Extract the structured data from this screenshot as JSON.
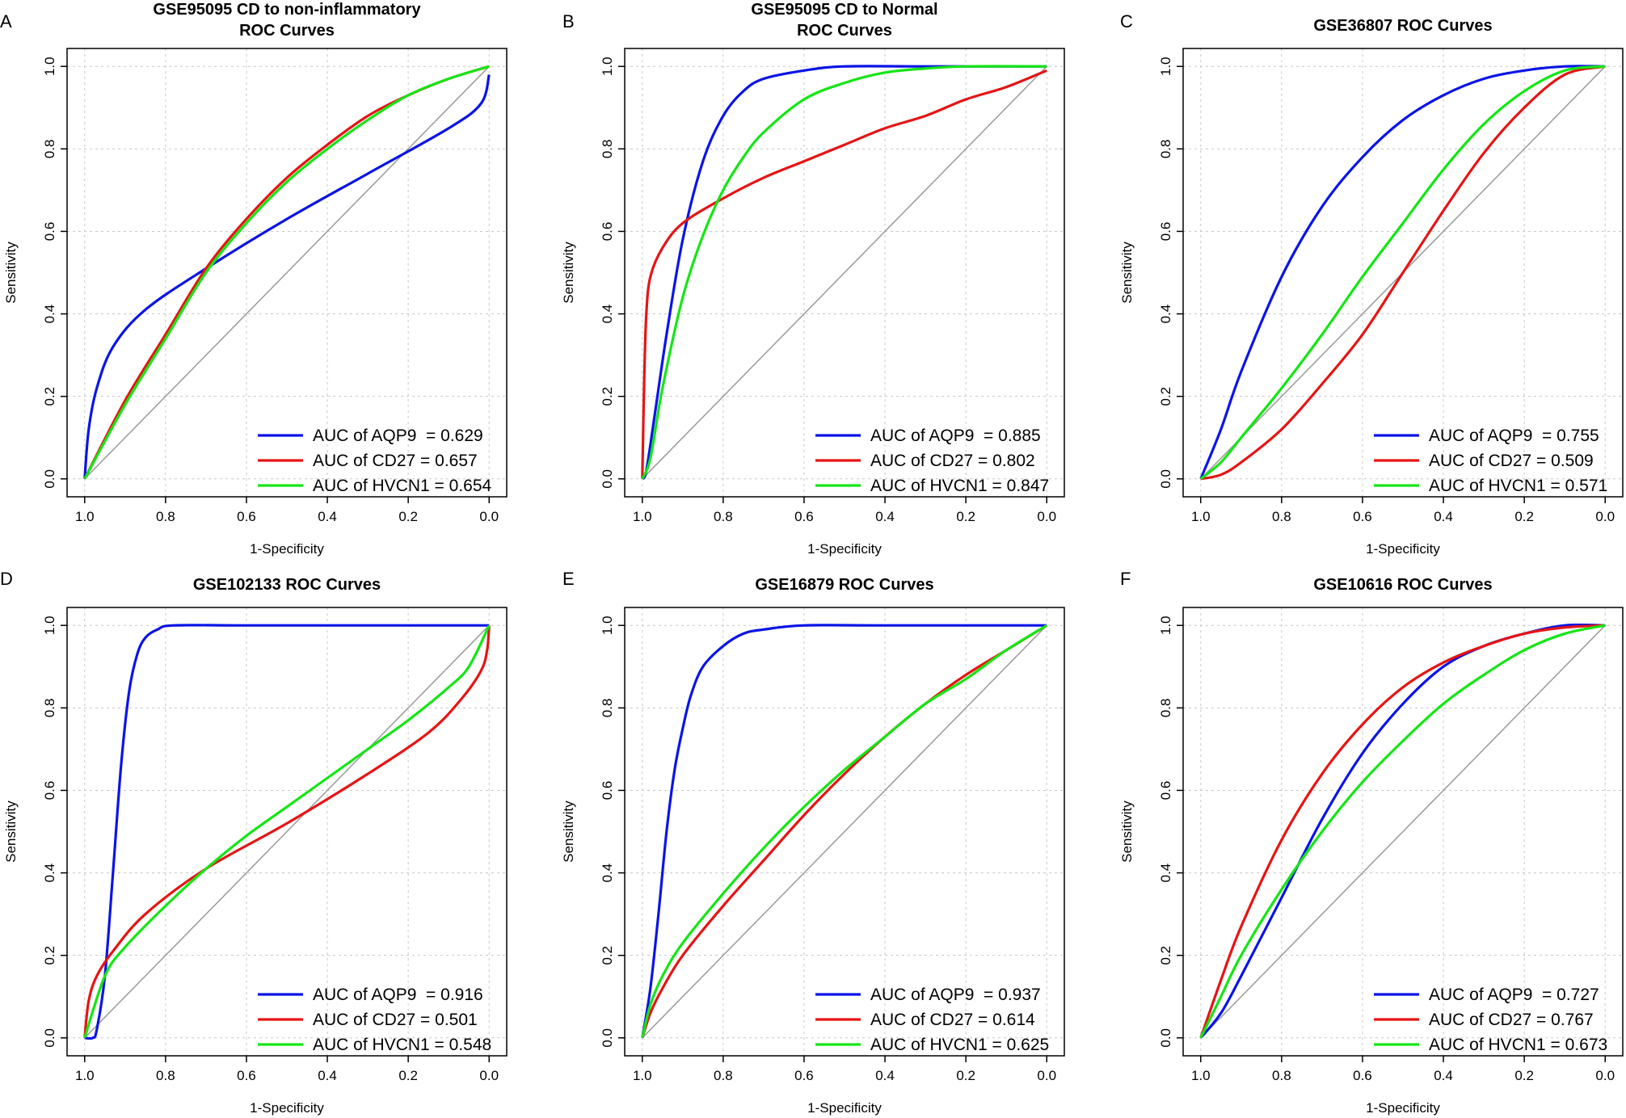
{
  "colors": {
    "AQP9": "#0a14e6",
    "CD27": "#e61414",
    "HVCN1": "#14e614",
    "diagonal": "#9a9a9a",
    "grid": "#c8c8c8",
    "axis": "#000000"
  },
  "chart_data": [
    {
      "panel_letter": "A",
      "type": "line",
      "title": [
        "GSE95095 CD to non-inflammatory",
        "ROC Curves"
      ],
      "xlabel": "1-Specificity",
      "ylabel": "Sensitivity",
      "xlim": [
        1.0,
        0.0
      ],
      "ylim": [
        0.0,
        1.0
      ],
      "x_ticks": [
        "1.0",
        "0.8",
        "0.6",
        "0.4",
        "0.2",
        "0.0"
      ],
      "y_ticks": [
        "0.0",
        "0.2",
        "0.4",
        "0.6",
        "0.8",
        "1.0"
      ],
      "grid": true,
      "legend_position": "bottom-right",
      "series": [
        {
          "name": "AQP9",
          "label": "AUC of AQP9  = 0.629",
          "specificity": [
            1.0,
            0.99,
            0.97,
            0.93,
            0.85,
            0.7,
            0.5,
            0.3,
            0.1,
            0.02,
            0.0
          ],
          "sensitivity": [
            0.0,
            0.12,
            0.22,
            0.32,
            0.41,
            0.51,
            0.63,
            0.74,
            0.85,
            0.91,
            0.98
          ]
        },
        {
          "name": "CD27",
          "label": "AUC of CD27 = 0.657",
          "specificity": [
            1.0,
            0.9,
            0.8,
            0.7,
            0.6,
            0.5,
            0.4,
            0.3,
            0.2,
            0.1,
            0.0
          ],
          "sensitivity": [
            0.0,
            0.19,
            0.35,
            0.51,
            0.63,
            0.73,
            0.81,
            0.88,
            0.93,
            0.97,
            1.0
          ]
        },
        {
          "name": "HVCN1",
          "label": "AUC of HVCN1 = 0.654",
          "specificity": [
            1.0,
            0.9,
            0.8,
            0.7,
            0.6,
            0.5,
            0.4,
            0.3,
            0.2,
            0.1,
            0.0
          ],
          "sensitivity": [
            0.0,
            0.18,
            0.34,
            0.5,
            0.62,
            0.72,
            0.8,
            0.87,
            0.93,
            0.97,
            1.0
          ]
        }
      ]
    },
    {
      "panel_letter": "B",
      "type": "line",
      "title": [
        "GSE95095 CD to Normal",
        "ROC Curves"
      ],
      "xlabel": "1-Specificity",
      "ylabel": "Sensitivity",
      "xlim": [
        1.0,
        0.0
      ],
      "ylim": [
        0.0,
        1.0
      ],
      "x_ticks": [
        "1.0",
        "0.8",
        "0.6",
        "0.4",
        "0.2",
        "0.0"
      ],
      "y_ticks": [
        "0.0",
        "0.2",
        "0.4",
        "0.6",
        "0.8",
        "1.0"
      ],
      "grid": true,
      "legend_position": "bottom-right",
      "series": [
        {
          "name": "AQP9",
          "label": "AUC of AQP9  = 0.885",
          "specificity": [
            1.0,
            0.99,
            0.97,
            0.94,
            0.9,
            0.85,
            0.8,
            0.75,
            0.7,
            0.6,
            0.5,
            0.3,
            0.0
          ],
          "sensitivity": [
            0.0,
            0.02,
            0.15,
            0.35,
            0.58,
            0.77,
            0.88,
            0.94,
            0.97,
            0.99,
            1.0,
            1.0,
            1.0
          ]
        },
        {
          "name": "CD27",
          "label": "AUC of CD27 = 0.802",
          "specificity": [
            1.0,
            0.995,
            0.99,
            0.98,
            0.95,
            0.9,
            0.8,
            0.7,
            0.6,
            0.5,
            0.4,
            0.3,
            0.2,
            0.1,
            0.0
          ],
          "sensitivity": [
            0.0,
            0.25,
            0.4,
            0.49,
            0.56,
            0.62,
            0.68,
            0.73,
            0.77,
            0.81,
            0.85,
            0.88,
            0.92,
            0.95,
            0.99
          ]
        },
        {
          "name": "HVCN1",
          "label": "AUC of HVCN1 = 0.847",
          "specificity": [
            1.0,
            0.98,
            0.95,
            0.9,
            0.85,
            0.8,
            0.75,
            0.7,
            0.6,
            0.5,
            0.4,
            0.3,
            0.2,
            0.0
          ],
          "sensitivity": [
            0.0,
            0.05,
            0.22,
            0.44,
            0.59,
            0.7,
            0.78,
            0.84,
            0.92,
            0.96,
            0.985,
            0.995,
            1.0,
            1.0
          ]
        }
      ]
    },
    {
      "panel_letter": "C",
      "type": "line",
      "title": [
        "GSE36807 ROC Curves"
      ],
      "xlabel": "1-Specificity",
      "ylabel": "Sensitivity",
      "xlim": [
        1.0,
        0.0
      ],
      "ylim": [
        0.0,
        1.0
      ],
      "x_ticks": [
        "1.0",
        "0.8",
        "0.6",
        "0.4",
        "0.2",
        "0.0"
      ],
      "y_ticks": [
        "0.0",
        "0.2",
        "0.4",
        "0.6",
        "0.8",
        "1.0"
      ],
      "grid": true,
      "legend_position": "bottom-right",
      "series": [
        {
          "name": "AQP9",
          "label": "AUC of AQP9  = 0.755",
          "specificity": [
            1.0,
            0.95,
            0.9,
            0.8,
            0.7,
            0.6,
            0.5,
            0.4,
            0.3,
            0.2,
            0.1,
            0.0
          ],
          "sensitivity": [
            0.0,
            0.12,
            0.26,
            0.49,
            0.66,
            0.78,
            0.87,
            0.93,
            0.97,
            0.99,
            1.0,
            1.0
          ]
        },
        {
          "name": "CD27",
          "label": "AUC of CD27 = 0.509",
          "specificity": [
            1.0,
            0.95,
            0.9,
            0.8,
            0.7,
            0.6,
            0.5,
            0.4,
            0.3,
            0.2,
            0.1,
            0.0
          ],
          "sensitivity": [
            0.0,
            0.01,
            0.04,
            0.12,
            0.23,
            0.35,
            0.5,
            0.65,
            0.79,
            0.9,
            0.98,
            1.0
          ]
        },
        {
          "name": "HVCN1",
          "label": "AUC of HVCN1 = 0.571",
          "specificity": [
            1.0,
            0.95,
            0.9,
            0.8,
            0.7,
            0.6,
            0.5,
            0.4,
            0.3,
            0.2,
            0.1,
            0.0
          ],
          "sensitivity": [
            0.0,
            0.04,
            0.1,
            0.22,
            0.35,
            0.49,
            0.62,
            0.75,
            0.86,
            0.94,
            0.99,
            1.0
          ]
        }
      ]
    },
    {
      "panel_letter": "D",
      "type": "line",
      "title": [
        "GSE102133 ROC Curves"
      ],
      "xlabel": "1-Specificity",
      "ylabel": "Sensitivity",
      "xlim": [
        1.0,
        0.0
      ],
      "ylim": [
        0.0,
        1.0
      ],
      "x_ticks": [
        "1.0",
        "0.8",
        "0.6",
        "0.4",
        "0.2",
        "0.0"
      ],
      "y_ticks": [
        "0.0",
        "0.2",
        "0.4",
        "0.6",
        "0.8",
        "1.0"
      ],
      "grid": true,
      "legend_position": "bottom-right",
      "series": [
        {
          "name": "AQP9",
          "label": "AUC of AQP9  = 0.916",
          "specificity": [
            1.0,
            0.98,
            0.97,
            0.95,
            0.93,
            0.91,
            0.89,
            0.87,
            0.85,
            0.82,
            0.78,
            0.6,
            0.3,
            0.0
          ],
          "sensitivity": [
            0.0,
            0.0,
            0.02,
            0.15,
            0.4,
            0.66,
            0.84,
            0.93,
            0.97,
            0.99,
            1.0,
            1.0,
            1.0,
            1.0
          ]
        },
        {
          "name": "CD27",
          "label": "AUC of CD27 = 0.501",
          "specificity": [
            1.0,
            0.99,
            0.97,
            0.93,
            0.85,
            0.7,
            0.5,
            0.3,
            0.15,
            0.07,
            0.02,
            0.005,
            0.0
          ],
          "sensitivity": [
            0.0,
            0.09,
            0.15,
            0.21,
            0.3,
            0.41,
            0.52,
            0.64,
            0.74,
            0.82,
            0.89,
            0.94,
            1.0
          ]
        },
        {
          "name": "HVCN1",
          "label": "AUC of HVCN1 = 0.548",
          "specificity": [
            1.0,
            0.95,
            0.9,
            0.8,
            0.7,
            0.6,
            0.5,
            0.4,
            0.3,
            0.2,
            0.1,
            0.05,
            0.0
          ],
          "sensitivity": [
            0.0,
            0.15,
            0.22,
            0.32,
            0.41,
            0.49,
            0.56,
            0.63,
            0.7,
            0.77,
            0.85,
            0.9,
            1.0
          ]
        }
      ]
    },
    {
      "panel_letter": "E",
      "type": "line",
      "title": [
        "GSE16879 ROC Curves"
      ],
      "xlabel": "1-Specificity",
      "ylabel": "Sensitivity",
      "xlim": [
        1.0,
        0.0
      ],
      "ylim": [
        0.0,
        1.0
      ],
      "x_ticks": [
        "1.0",
        "0.8",
        "0.6",
        "0.4",
        "0.2",
        "0.0"
      ],
      "y_ticks": [
        "0.0",
        "0.2",
        "0.4",
        "0.6",
        "0.8",
        "1.0"
      ],
      "grid": true,
      "legend_position": "bottom-right",
      "series": [
        {
          "name": "AQP9",
          "label": "AUC of AQP9  = 0.937",
          "specificity": [
            1.0,
            0.98,
            0.96,
            0.94,
            0.92,
            0.9,
            0.88,
            0.85,
            0.8,
            0.75,
            0.7,
            0.6,
            0.4,
            0.0
          ],
          "sensitivity": [
            0.0,
            0.12,
            0.3,
            0.5,
            0.65,
            0.75,
            0.83,
            0.9,
            0.95,
            0.98,
            0.99,
            1.0,
            1.0,
            1.0
          ]
        },
        {
          "name": "CD27",
          "label": "AUC of CD27 = 0.614",
          "specificity": [
            1.0,
            0.98,
            0.95,
            0.9,
            0.8,
            0.7,
            0.6,
            0.5,
            0.4,
            0.3,
            0.2,
            0.1,
            0.0
          ],
          "sensitivity": [
            0.0,
            0.06,
            0.12,
            0.2,
            0.32,
            0.43,
            0.54,
            0.64,
            0.73,
            0.81,
            0.88,
            0.94,
            1.0
          ]
        },
        {
          "name": "HVCN1",
          "label": "AUC of HVCN1 = 0.625",
          "specificity": [
            1.0,
            0.98,
            0.95,
            0.9,
            0.8,
            0.7,
            0.6,
            0.5,
            0.4,
            0.3,
            0.2,
            0.1,
            0.0
          ],
          "sensitivity": [
            0.0,
            0.08,
            0.15,
            0.23,
            0.35,
            0.46,
            0.56,
            0.65,
            0.73,
            0.81,
            0.87,
            0.94,
            1.0
          ]
        }
      ]
    },
    {
      "panel_letter": "F",
      "type": "line",
      "title": [
        "GSE10616 ROC Curves"
      ],
      "xlabel": "1-Specificity",
      "ylabel": "Sensitivity",
      "xlim": [
        1.0,
        0.0
      ],
      "ylim": [
        0.0,
        1.0
      ],
      "x_ticks": [
        "1.0",
        "0.8",
        "0.6",
        "0.4",
        "0.2",
        "0.0"
      ],
      "y_ticks": [
        "0.0",
        "0.2",
        "0.4",
        "0.6",
        "0.8",
        "1.0"
      ],
      "grid": true,
      "legend_position": "bottom-right",
      "series": [
        {
          "name": "AQP9",
          "label": "AUC of AQP9  = 0.727",
          "specificity": [
            1.0,
            0.95,
            0.9,
            0.8,
            0.7,
            0.6,
            0.5,
            0.4,
            0.3,
            0.2,
            0.1,
            0.0
          ],
          "sensitivity": [
            0.0,
            0.06,
            0.15,
            0.34,
            0.53,
            0.69,
            0.81,
            0.9,
            0.95,
            0.98,
            1.0,
            1.0
          ]
        },
        {
          "name": "CD27",
          "label": "AUC of CD27 = 0.767",
          "specificity": [
            1.0,
            0.95,
            0.9,
            0.8,
            0.7,
            0.6,
            0.5,
            0.4,
            0.3,
            0.2,
            0.1,
            0.0
          ],
          "sensitivity": [
            0.0,
            0.14,
            0.27,
            0.48,
            0.64,
            0.76,
            0.85,
            0.91,
            0.95,
            0.98,
            0.995,
            1.0
          ]
        },
        {
          "name": "HVCN1",
          "label": "AUC of HVCN1 = 0.673",
          "specificity": [
            1.0,
            0.95,
            0.9,
            0.8,
            0.7,
            0.6,
            0.5,
            0.4,
            0.3,
            0.2,
            0.1,
            0.0
          ],
          "sensitivity": [
            0.0,
            0.1,
            0.2,
            0.36,
            0.5,
            0.62,
            0.72,
            0.81,
            0.88,
            0.94,
            0.98,
            1.0
          ]
        }
      ]
    }
  ]
}
